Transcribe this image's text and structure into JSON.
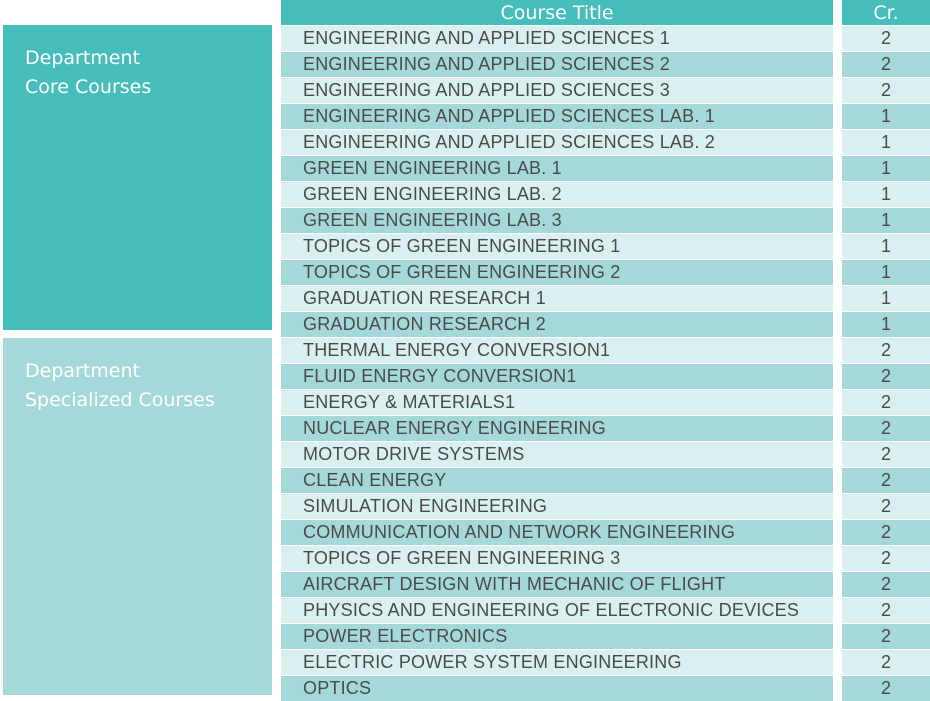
{
  "header": {
    "title": "Course Title",
    "credits": "Cr."
  },
  "groups": [
    {
      "label_line1": "Department",
      "label_line2": "Core Courses"
    },
    {
      "label_line1": "Department",
      "label_line2": "Specialized Courses"
    }
  ],
  "core_rows": [
    {
      "title": "ENGINEERING AND APPLIED SCIENCES 1",
      "cr": "2"
    },
    {
      "title": "ENGINEERING AND APPLIED SCIENCES 2",
      "cr": "2"
    },
    {
      "title": "ENGINEERING AND APPLIED SCIENCES 3",
      "cr": "2"
    },
    {
      "title": "ENGINEERING AND APPLIED SCIENCES LAB. 1",
      "cr": "1"
    },
    {
      "title": "ENGINEERING AND APPLIED SCIENCES LAB. 2",
      "cr": "1"
    },
    {
      "title": "GREEN ENGINEERING LAB. 1",
      "cr": "1"
    },
    {
      "title": "GREEN ENGINEERING LAB. 2",
      "cr": "1"
    },
    {
      "title": "GREEN ENGINEERING LAB. 3",
      "cr": "1"
    },
    {
      "title": "TOPICS OF GREEN ENGINEERING 1",
      "cr": "1"
    },
    {
      "title": "TOPICS OF GREEN ENGINEERING 2",
      "cr": "1"
    },
    {
      "title": "GRADUATION RESEARCH 1",
      "cr": "1"
    },
    {
      "title": "GRADUATION RESEARCH 2",
      "cr": "1"
    }
  ],
  "specialized_rows": [
    {
      "title": "THERMAL ENERGY CONVERSION1",
      "cr": "2"
    },
    {
      "title": "FLUID ENERGY CONVERSION1",
      "cr": "2"
    },
    {
      "title": "ENERGY & MATERIALS1",
      "cr": "2"
    },
    {
      "title": "NUCLEAR ENERGY ENGINEERING",
      "cr": "2"
    },
    {
      "title": "MOTOR DRIVE SYSTEMS",
      "cr": "2"
    },
    {
      "title": "CLEAN ENERGY",
      "cr": "2"
    },
    {
      "title": "SIMULATION ENGINEERING",
      "cr": "2"
    },
    {
      "title": "COMMUNICATION AND NETWORK ENGINEERING",
      "cr": "2"
    },
    {
      "title": "TOPICS OF GREEN ENGINEERING 3",
      "cr": "2"
    },
    {
      "title": "AIRCRAFT DESIGN WITH MECHANIC OF FLIGHT",
      "cr": "2"
    },
    {
      "title": "PHYSICS AND ENGINEERING OF ELECTRONIC DEVICES",
      "cr": "2"
    },
    {
      "title": "POWER ELECTRONICS",
      "cr": "2"
    },
    {
      "title": "ELECTRIC POWER SYSTEM ENGINEERING",
      "cr": "2"
    },
    {
      "title": "OPTICS",
      "cr": "2"
    }
  ],
  "colors": {
    "header_teal": "#45bdbb",
    "row_light": "#daf0f0",
    "row_dark": "#a5d9d9",
    "text": "#4a4a4a"
  }
}
